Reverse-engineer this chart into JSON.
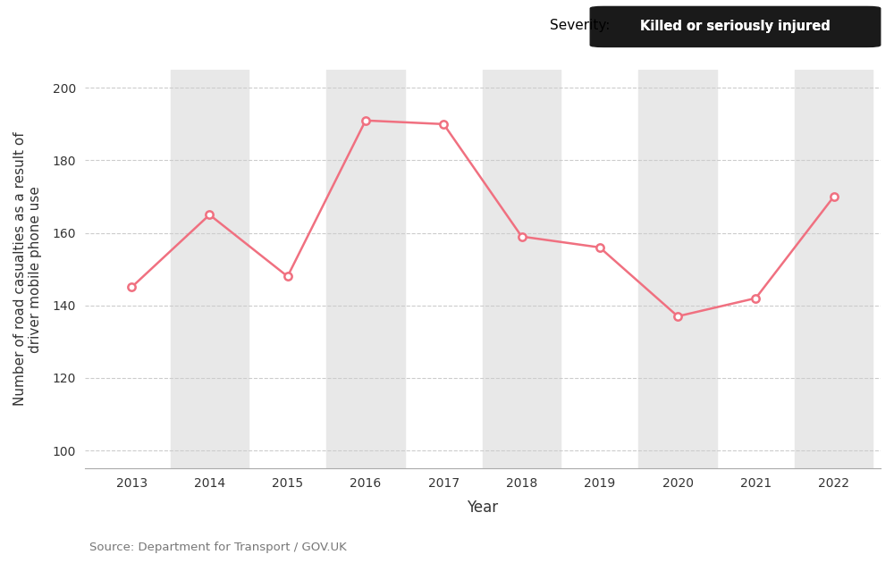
{
  "years": [
    2013,
    2014,
    2015,
    2016,
    2017,
    2018,
    2019,
    2020,
    2021,
    2022
  ],
  "values": [
    145,
    165,
    148,
    191,
    190,
    159,
    156,
    137,
    142,
    170
  ],
  "line_color": "#f07080",
  "marker_face": "#ffffff",
  "ylabel": "Number of road casualties as a result of\ndriver mobile phone use",
  "xlabel": "Year",
  "source": "Source: Department for Transport / GOV.UK",
  "severity_label": "Severity:",
  "severity_badge": "Killed or seriously injured",
  "ylim": [
    95,
    205
  ],
  "yticks": [
    100,
    120,
    140,
    160,
    180,
    200
  ],
  "bg_color": "#ffffff",
  "plot_bg": "#ffffff",
  "stripe_color": "#e8e8e8",
  "grid_color": "#cccccc",
  "label_fontsize": 11,
  "tick_fontsize": 10,
  "source_fontsize": 9.5,
  "badge_bg": "#1a1a1a",
  "badge_fg": "#ffffff"
}
